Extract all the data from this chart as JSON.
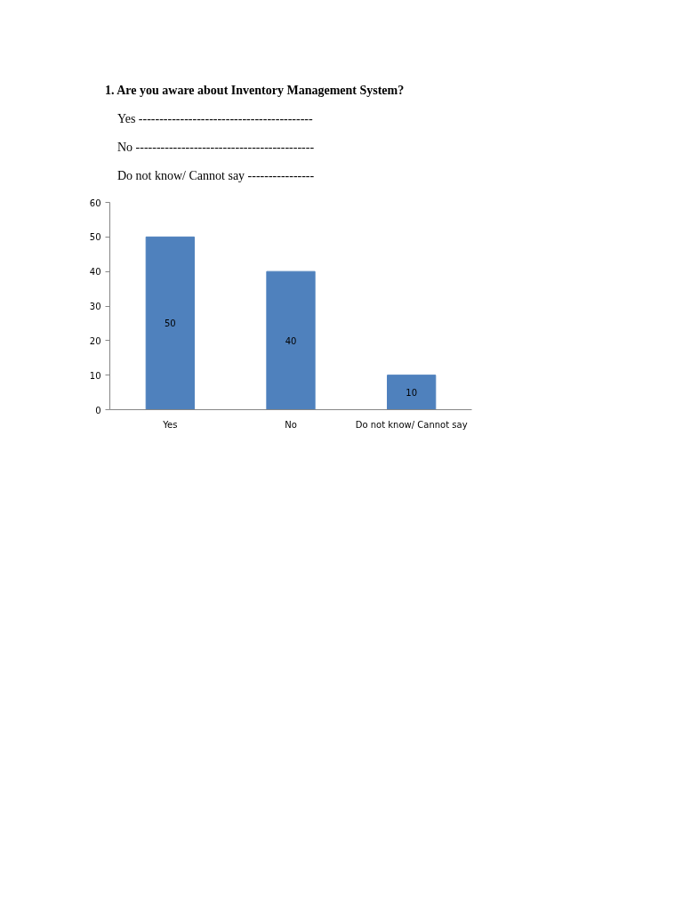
{
  "chart_data": {
    "type": "bar",
    "title": "1. Are you aware about Inventory Management System?",
    "annotations": [
      "Yes ------------------------------------------",
      "No -------------------------------------------",
      "Do not know/ Cannot say ----------------"
    ],
    "categories": [
      "Yes",
      "No",
      "Do not know/ Cannot say"
    ],
    "values": [
      50,
      40,
      10
    ],
    "color": "#4f81bd",
    "ylim": [
      0,
      60
    ],
    "yticks": [
      0,
      10,
      20,
      30,
      40,
      50,
      60
    ],
    "grid": false,
    "data_labels": true
  }
}
